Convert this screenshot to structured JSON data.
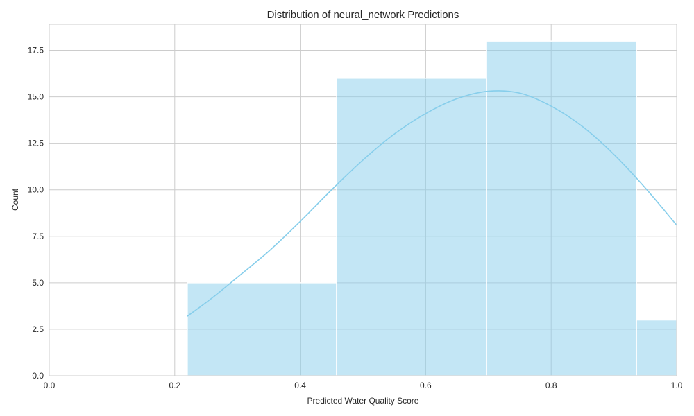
{
  "chart_data": {
    "type": "bar",
    "title": "Distribution of neural_network Predictions",
    "xlabel": "Predicted Water Quality Score",
    "ylabel": "Count",
    "xlim": [
      0.0,
      1.0
    ],
    "ylim": [
      0,
      18.9
    ],
    "x_ticks": [
      "0.0",
      "0.2",
      "0.4",
      "0.6",
      "0.8",
      "1.0"
    ],
    "y_ticks": [
      "0.0",
      "2.5",
      "5.0",
      "7.5",
      "10.0",
      "12.5",
      "15.0",
      "17.5"
    ],
    "bins": [
      {
        "start": 0.22,
        "end": 0.458,
        "count": 5
      },
      {
        "start": 0.458,
        "end": 0.697,
        "count": 16
      },
      {
        "start": 0.697,
        "end": 0.936,
        "count": 18
      },
      {
        "start": 0.936,
        "end": 1.0,
        "count": 3
      }
    ],
    "kde": {
      "x": [
        0.22,
        0.26,
        0.3,
        0.35,
        0.4,
        0.45,
        0.5,
        0.55,
        0.6,
        0.65,
        0.7,
        0.75,
        0.8,
        0.85,
        0.9,
        0.95,
        1.0
      ],
      "y": [
        3.2,
        4.2,
        5.3,
        6.7,
        8.3,
        10.0,
        11.6,
        13.0,
        14.1,
        14.9,
        15.3,
        15.2,
        14.5,
        13.4,
        11.9,
        10.1,
        8.1
      ]
    },
    "grid": true,
    "colors": {
      "bar_fill": "#87ceeb",
      "bar_opacity": 0.5,
      "bar_edge": "#ffffff",
      "kde_line": "#87ceeb",
      "grid": "#cccccc",
      "axis": "#cccccc"
    }
  }
}
